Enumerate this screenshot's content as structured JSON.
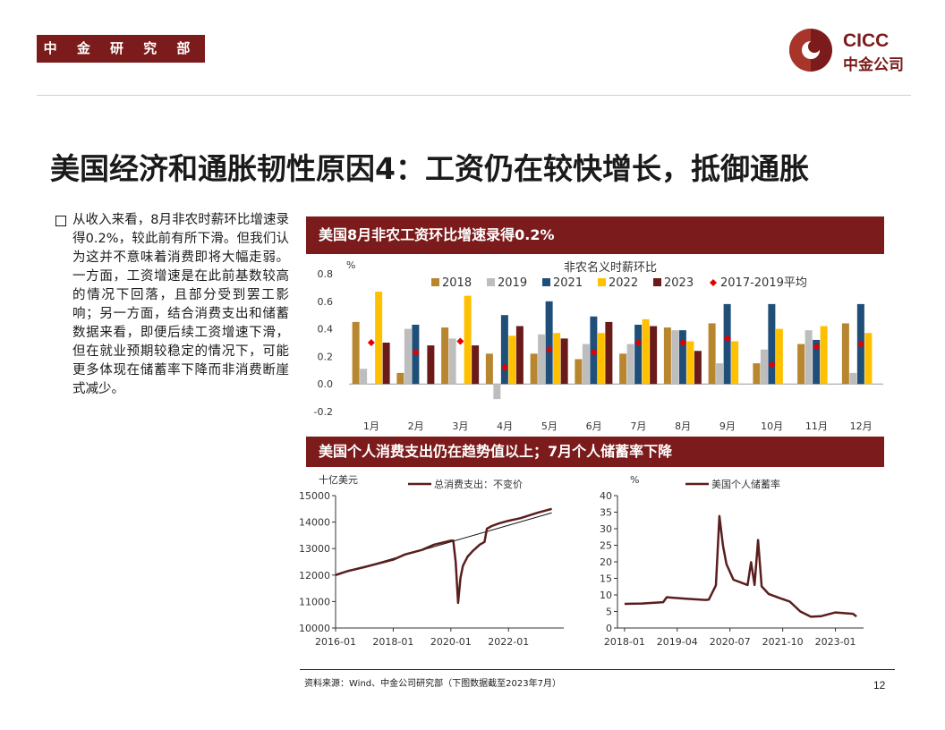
{
  "header": {
    "tag": "中 金 研 究 部",
    "logo_line1": "CICC",
    "logo_line2": "中金公司"
  },
  "title": "美国经济和通胀韧性原因4：工资仍在较快增长，抵御通胀",
  "body_text": "从收入来看，8月非农时薪环比增速录得0.2%，较此前有所下滑。但我们认为这并不意味着消费即将大幅走弱。一方面，工资增速是在此前基数较高的情况下回落，且部分受到罢工影响；另一方面，结合消费支出和储蓄数据来看，即便后续工资增速下滑，但在就业预期较稳定的情况下，可能更多体现在储蓄率下降而非消费断崖式减少。",
  "banner1": "美国8月非农工资环比增速录得0.2%",
  "banner2": "美国个人消费支出仍在趋势值以上；7月个人储蓄率下降",
  "colors": {
    "brand": "#7b1b1b",
    "s2018": "#b8862f",
    "s2019": "#bdbdbd",
    "s2021": "#1f4e79",
    "s2022": "#ffc000",
    "s2023": "#6b1a1a",
    "avg": "#e00000",
    "line": "#5a1e1e"
  },
  "chart_data": [
    {
      "type": "bar",
      "title": "非农名义时薪环比",
      "ylabel": "%",
      "ylim": [
        -0.2,
        0.8
      ],
      "yticks": [
        "0.8",
        "0.6",
        "0.4",
        "0.2",
        "0.0",
        "-0.2"
      ],
      "categories": [
        "1月",
        "2月",
        "3月",
        "4月",
        "5月",
        "6月",
        "7月",
        "8月",
        "9月",
        "10月",
        "11月",
        "12月"
      ],
      "series": [
        {
          "name": "2018",
          "values": [
            0.45,
            0.08,
            0.41,
            0.22,
            0.22,
            0.18,
            0.22,
            0.41,
            0.44,
            0.15,
            0.29,
            0.44
          ]
        },
        {
          "name": "2019",
          "values": [
            0.11,
            0.4,
            0.33,
            -0.11,
            0.36,
            0.29,
            0.29,
            0.39,
            0.15,
            0.25,
            0.39,
            0.08
          ]
        },
        {
          "name": "2021",
          "values": [
            null,
            0.43,
            null,
            0.5,
            0.6,
            0.49,
            0.43,
            0.39,
            0.58,
            0.58,
            0.32,
            0.58
          ]
        },
        {
          "name": "2022",
          "values": [
            0.67,
            null,
            0.64,
            0.35,
            0.37,
            0.37,
            0.47,
            0.31,
            0.31,
            0.4,
            0.42,
            0.37
          ]
        },
        {
          "name": "2023",
          "values": [
            0.3,
            0.28,
            0.28,
            0.42,
            0.33,
            0.45,
            0.42,
            0.24,
            null,
            null,
            null,
            null
          ]
        }
      ],
      "average": {
        "name": "2017-2019平均",
        "values": [
          0.3,
          0.23,
          0.31,
          0.12,
          0.25,
          0.23,
          0.3,
          0.3,
          0.33,
          0.14,
          0.27,
          0.29
        ]
      }
    },
    {
      "type": "line",
      "ylabel": "十亿美元",
      "ylim": [
        10000,
        15000
      ],
      "yticks": [
        "15000",
        "14000",
        "13000",
        "12000",
        "11000",
        "10000"
      ],
      "xticks": [
        "2016-01",
        "2018-01",
        "2020-01",
        "2022-01"
      ],
      "series": [
        {
          "name": "总消费支出：不变价",
          "x": [
            "2016-01",
            "2016-06",
            "2017-01",
            "2017-06",
            "2018-01",
            "2018-06",
            "2019-01",
            "2019-06",
            "2020-01",
            "2020-02",
            "2020-03",
            "2020-04",
            "2020-05",
            "2020-06",
            "2020-08",
            "2020-10",
            "2021-01",
            "2021-03",
            "2021-04",
            "2021-06",
            "2021-09",
            "2022-01",
            "2022-06",
            "2023-01",
            "2023-07"
          ],
          "y": [
            12000,
            12150,
            12300,
            12420,
            12580,
            12780,
            12950,
            13150,
            13300,
            13300,
            12500,
            10950,
            11900,
            12350,
            12700,
            12900,
            13150,
            13250,
            13750,
            13850,
            13950,
            14050,
            14150,
            14350,
            14500
          ]
        },
        {
          "values": "trend",
          "x": [
            "2016-01",
            "2023-07"
          ],
          "y": [
            12000,
            14350
          ]
        }
      ]
    },
    {
      "type": "line",
      "ylabel": "%",
      "ylim": [
        0,
        40
      ],
      "yticks": [
        "40",
        "35",
        "30",
        "25",
        "20",
        "15",
        "10",
        "5",
        "0"
      ],
      "xticks": [
        "2018-01",
        "2019-04",
        "2020-07",
        "2021-10",
        "2023-01"
      ],
      "series": [
        {
          "name": "美国个人储蓄率",
          "x": [
            "2018-01",
            "2018-06",
            "2018-12",
            "2019-01",
            "2019-06",
            "2019-12",
            "2020-01",
            "2020-03",
            "2020-04",
            "2020-05",
            "2020-06",
            "2020-08",
            "2020-12",
            "2021-01",
            "2021-02",
            "2021-03",
            "2021-04",
            "2021-06",
            "2021-09",
            "2021-12",
            "2022-03",
            "2022-06",
            "2022-09",
            "2023-01",
            "2023-06",
            "2023-07"
          ],
          "y": [
            7.3,
            7.4,
            7.8,
            9.3,
            8.9,
            8.5,
            8.6,
            12.9,
            33.8,
            24.9,
            19.3,
            14.6,
            13.0,
            19.9,
            13.0,
            26.6,
            12.6,
            10.3,
            9.1,
            8.0,
            5.0,
            3.4,
            3.6,
            4.7,
            4.3,
            3.5
          ]
        }
      ]
    }
  ],
  "source": "资料来源：Wind、中金公司研究部（下图数据截至2023年7月）",
  "page_number": "12"
}
